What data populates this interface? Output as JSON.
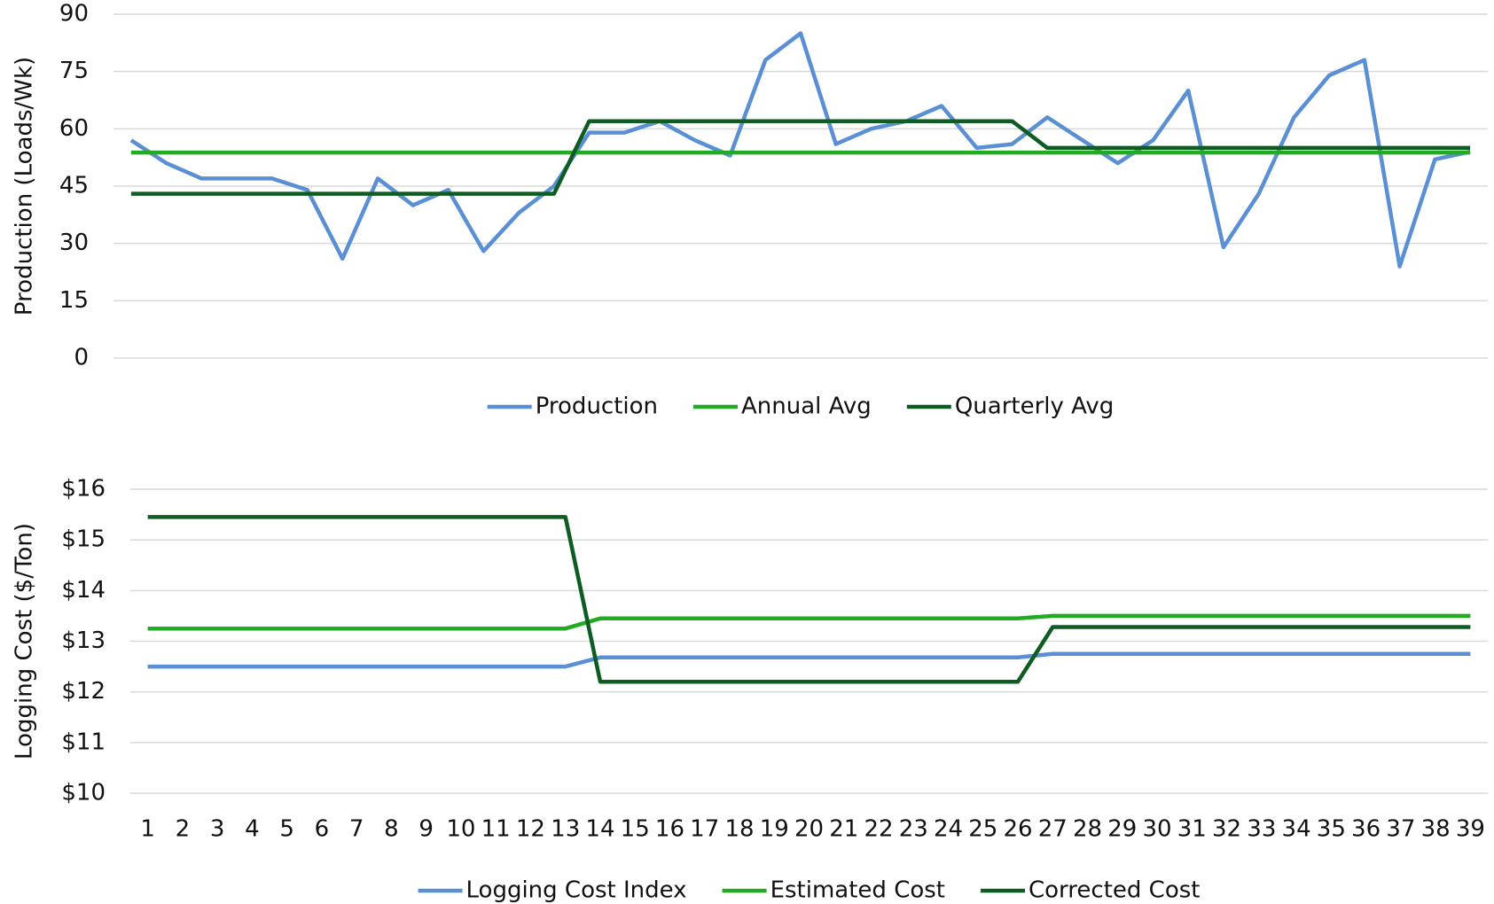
{
  "chart_data": [
    {
      "type": "line",
      "y_label": "Production (Loads/Wk)",
      "ylim": [
        0,
        90
      ],
      "yticks": [
        0,
        15,
        30,
        45,
        60,
        75,
        90
      ],
      "grid": true,
      "legend": "bottom",
      "series": [
        {
          "name": "Production",
          "color": "#5b8fd4",
          "values": [
            57,
            51,
            47,
            47,
            47,
            44,
            26,
            47,
            40,
            44,
            28,
            38,
            45,
            59,
            59,
            62,
            57,
            53,
            78,
            85,
            56,
            60,
            62,
            66,
            55,
            56,
            63,
            57,
            51,
            57,
            70,
            29,
            43,
            63,
            74,
            78,
            24,
            52,
            54
          ]
        },
        {
          "name": "Annual Avg",
          "color": "#22aa22",
          "values": [
            53.8,
            53.8,
            53.8,
            53.8,
            53.8,
            53.8,
            53.8,
            53.8,
            53.8,
            53.8,
            53.8,
            53.8,
            53.8,
            53.8,
            53.8,
            53.8,
            53.8,
            53.8,
            53.8,
            53.8,
            53.8,
            53.8,
            53.8,
            53.8,
            53.8,
            53.8,
            53.8,
            53.8,
            53.8,
            53.8,
            53.8,
            53.8,
            53.8,
            53.8,
            53.8,
            53.8,
            53.8,
            53.8,
            53.8
          ]
        },
        {
          "name": "Quarterly Avg",
          "color": "#0e5c22",
          "values": [
            43,
            43,
            43,
            43,
            43,
            43,
            43,
            43,
            43,
            43,
            43,
            43,
            43,
            62,
            62,
            62,
            62,
            62,
            62,
            62,
            62,
            62,
            62,
            62,
            62,
            62,
            55,
            55,
            55,
            55,
            55,
            55,
            55,
            55,
            55,
            55,
            55,
            55,
            55
          ]
        }
      ]
    },
    {
      "type": "line",
      "y_label": "Logging Cost ($/Ton)",
      "categories": [
        "1",
        "2",
        "3",
        "4",
        "5",
        "6",
        "7",
        "8",
        "9",
        "10",
        "11",
        "12",
        "13",
        "14",
        "15",
        "16",
        "17",
        "18",
        "19",
        "20",
        "21",
        "22",
        "23",
        "24",
        "25",
        "26",
        "27",
        "28",
        "29",
        "30",
        "31",
        "32",
        "33",
        "34",
        "35",
        "36",
        "37",
        "38",
        "39"
      ],
      "ylim": [
        10,
        16
      ],
      "yticks": [
        {
          "value": 10,
          "label": "$10"
        },
        {
          "value": 11,
          "label": "$11"
        },
        {
          "value": 12,
          "label": "$12"
        },
        {
          "value": 13,
          "label": "$13"
        },
        {
          "value": 14,
          "label": "$14"
        },
        {
          "value": 15,
          "label": "$15"
        },
        {
          "value": 16,
          "label": "$16"
        }
      ],
      "grid": true,
      "legend": "bottom",
      "series": [
        {
          "name": "Logging Cost Index",
          "color": "#5b8fd4",
          "values": [
            12.5,
            12.5,
            12.5,
            12.5,
            12.5,
            12.5,
            12.5,
            12.5,
            12.5,
            12.5,
            12.5,
            12.5,
            12.5,
            12.68,
            12.68,
            12.68,
            12.68,
            12.68,
            12.68,
            12.68,
            12.68,
            12.68,
            12.68,
            12.68,
            12.68,
            12.68,
            12.75,
            12.75,
            12.75,
            12.75,
            12.75,
            12.75,
            12.75,
            12.75,
            12.75,
            12.75,
            12.75,
            12.75,
            12.75
          ]
        },
        {
          "name": "Estimated Cost",
          "color": "#22aa22",
          "values": [
            13.25,
            13.25,
            13.25,
            13.25,
            13.25,
            13.25,
            13.25,
            13.25,
            13.25,
            13.25,
            13.25,
            13.25,
            13.25,
            13.45,
            13.45,
            13.45,
            13.45,
            13.45,
            13.45,
            13.45,
            13.45,
            13.45,
            13.45,
            13.45,
            13.45,
            13.45,
            13.5,
            13.5,
            13.5,
            13.5,
            13.5,
            13.5,
            13.5,
            13.5,
            13.5,
            13.5,
            13.5,
            13.5,
            13.5
          ]
        },
        {
          "name": "Corrected Cost",
          "color": "#0e5c22",
          "values": [
            15.45,
            15.45,
            15.45,
            15.45,
            15.45,
            15.45,
            15.45,
            15.45,
            15.45,
            15.45,
            15.45,
            15.45,
            15.45,
            12.2,
            12.2,
            12.2,
            12.2,
            12.2,
            12.2,
            12.2,
            12.2,
            12.2,
            12.2,
            12.2,
            12.2,
            12.2,
            13.28,
            13.28,
            13.28,
            13.28,
            13.28,
            13.28,
            13.28,
            13.28,
            13.28,
            13.28,
            13.28,
            13.28,
            13.28
          ]
        }
      ]
    }
  ]
}
